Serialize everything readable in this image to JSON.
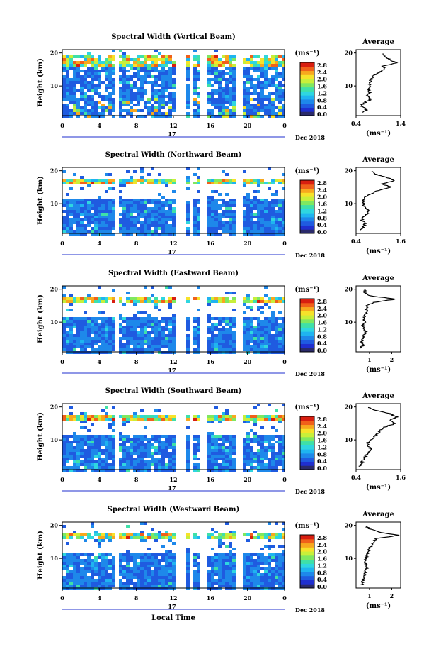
{
  "palette": [
    "#2a2a6a",
    "#1f2fcf",
    "#1f5be0",
    "#1e88ea",
    "#1fb4f0",
    "#2fd6e0",
    "#3fe0a8",
    "#7fe860",
    "#c8ef3a",
    "#f6e22a",
    "#f7a81e",
    "#f0601a",
    "#d81e10"
  ],
  "chart_data": [
    {
      "type": "heatmap",
      "title": "Spectral Width (Vertical Beam)",
      "ylabel": "Height (km)",
      "xlabel": "",
      "x_ticks": [
        "0",
        "4",
        "8",
        "12",
        "16",
        "20",
        "0"
      ],
      "date_label": "17",
      "month_label": "Dec 2018",
      "y_ticks": [
        "20",
        "10"
      ],
      "colorbar": {
        "unit": "(ms⁻¹)",
        "ticks": [
          "2.8",
          "2.4",
          "2.0",
          "1.6",
          "1.2",
          "0.8",
          "0.4",
          "0.0"
        ],
        "range": [
          0,
          3.0
        ]
      },
      "avg": {
        "title": "Average",
        "x_ticks": [
          "0.4",
          "1.4"
        ],
        "xlim": [
          0.4,
          1.4
        ],
        "y_ticks": [
          "20",
          "10"
        ],
        "xlabel": "(ms⁻¹)",
        "profile": [
          [
            2,
            0.55
          ],
          [
            3,
            0.65
          ],
          [
            4,
            0.5
          ],
          [
            5,
            0.6
          ],
          [
            6,
            0.75
          ],
          [
            7,
            0.65
          ],
          [
            8,
            0.7
          ],
          [
            9,
            0.68
          ],
          [
            10,
            0.72
          ],
          [
            11,
            0.7
          ],
          [
            12,
            0.74
          ],
          [
            13,
            0.78
          ],
          [
            14,
            0.9
          ],
          [
            15,
            1.05
          ],
          [
            16,
            1.0
          ],
          [
            17,
            1.3
          ],
          [
            18,
            1.15
          ],
          [
            19,
            1.05
          ],
          [
            20,
            1.0
          ]
        ]
      }
    },
    {
      "type": "heatmap",
      "title": "Spectral Width (Northward Beam)",
      "ylabel": "Height (km)",
      "xlabel": "",
      "x_ticks": [
        "0",
        "4",
        "8",
        "12",
        "16",
        "20",
        "0"
      ],
      "date_label": "17",
      "month_label": "Dec 2018",
      "y_ticks": [
        "20",
        "10"
      ],
      "colorbar": {
        "unit": "(ms⁻¹)",
        "ticks": [
          "2.8",
          "2.4",
          "2.0",
          "1.6",
          "1.2",
          "0.8",
          "0.4",
          "0.0"
        ],
        "range": [
          0,
          3.0
        ]
      },
      "avg": {
        "title": "Average",
        "x_ticks": [
          "0.4",
          "1.6"
        ],
        "xlim": [
          0.4,
          1.6
        ],
        "y_ticks": [
          "20",
          "10"
        ],
        "xlabel": "(ms⁻¹)",
        "profile": [
          [
            2,
            0.55
          ],
          [
            3,
            0.6
          ],
          [
            4,
            0.65
          ],
          [
            5,
            0.55
          ],
          [
            6,
            0.6
          ],
          [
            7,
            0.7
          ],
          [
            8,
            0.75
          ],
          [
            9,
            0.62
          ],
          [
            10,
            0.6
          ],
          [
            11,
            0.6
          ],
          [
            12,
            0.65
          ],
          [
            13,
            0.8
          ],
          [
            14,
            1.0
          ],
          [
            15,
            1.35
          ],
          [
            16,
            1.1
          ],
          [
            17,
            1.45
          ],
          [
            18,
            1.2
          ],
          [
            19,
            0.9
          ],
          [
            20,
            0.8
          ]
        ]
      }
    },
    {
      "type": "heatmap",
      "title": "Spectral Width (Eastward Beam)",
      "ylabel": "Height (km)",
      "xlabel": "",
      "x_ticks": [
        "0",
        "4",
        "8",
        "12",
        "16",
        "20",
        "0"
      ],
      "date_label": "17",
      "month_label": "Dec 2018",
      "y_ticks": [
        "20",
        "10"
      ],
      "colorbar": {
        "unit": "(ms⁻¹)",
        "ticks": [
          "2.8",
          "2.4",
          "2.0",
          "1.6",
          "1.2",
          "0.8",
          "0.4",
          "0.0"
        ],
        "range": [
          0,
          3.0
        ]
      },
      "avg": {
        "title": "Average",
        "x_ticks": [
          "1",
          "2"
        ],
        "xlim": [
          0.4,
          2.4
        ],
        "y_ticks": [
          "20",
          "10"
        ],
        "xlabel": "(ms⁻¹)",
        "profile": [
          [
            2,
            0.6
          ],
          [
            3,
            0.7
          ],
          [
            4,
            0.65
          ],
          [
            5,
            0.7
          ],
          [
            6,
            0.75
          ],
          [
            7,
            0.85
          ],
          [
            8,
            0.75
          ],
          [
            9,
            0.7
          ],
          [
            10,
            0.8
          ],
          [
            11,
            0.75
          ],
          [
            12,
            0.8
          ],
          [
            13,
            0.9
          ],
          [
            14,
            0.85
          ],
          [
            15,
            0.9
          ],
          [
            16,
            1.2
          ],
          [
            17,
            2.2
          ],
          [
            18,
            1.0
          ],
          [
            19,
            0.8
          ],
          [
            20,
            0.8
          ]
        ]
      }
    },
    {
      "type": "heatmap",
      "title": "Spectral Width (Southward Beam)",
      "ylabel": "Height (km)",
      "xlabel": "",
      "x_ticks": [
        "0",
        "4",
        "8",
        "12",
        "16",
        "20",
        "0"
      ],
      "date_label": "17",
      "month_label": "Dec 2018",
      "y_ticks": [
        "20",
        "10"
      ],
      "colorbar": {
        "unit": "(ms⁻¹)",
        "ticks": [
          "2.8",
          "2.4",
          "2.0",
          "1.6",
          "1.2",
          "0.8",
          "0.4",
          "0.0"
        ],
        "range": [
          0,
          3.0
        ]
      },
      "avg": {
        "title": "Average",
        "x_ticks": [
          "0.4",
          "1.6"
        ],
        "xlim": [
          0.4,
          1.6
        ],
        "y_ticks": [
          "20",
          "10"
        ],
        "xlabel": "(ms⁻¹)",
        "profile": [
          [
            2,
            0.5
          ],
          [
            3,
            0.55
          ],
          [
            4,
            0.6
          ],
          [
            5,
            0.65
          ],
          [
            6,
            0.7
          ],
          [
            7,
            0.8
          ],
          [
            8,
            0.75
          ],
          [
            9,
            0.7
          ],
          [
            10,
            0.8
          ],
          [
            11,
            0.9
          ],
          [
            12,
            1.0
          ],
          [
            13,
            1.05
          ],
          [
            14,
            1.2
          ],
          [
            15,
            1.45
          ],
          [
            16,
            1.3
          ],
          [
            17,
            1.5
          ],
          [
            18,
            1.3
          ],
          [
            19,
            0.9
          ],
          [
            20,
            0.7
          ]
        ]
      }
    },
    {
      "type": "heatmap",
      "title": "Spectral Width (Westward Beam)",
      "ylabel": "Height (km)",
      "xlabel": "Local Time",
      "x_ticks": [
        "0",
        "4",
        "8",
        "12",
        "16",
        "20",
        "0"
      ],
      "date_label": "17",
      "month_label": "Dec 2018",
      "y_ticks": [
        "20",
        "10"
      ],
      "colorbar": {
        "unit": "(ms⁻¹)",
        "ticks": [
          "2.8",
          "2.4",
          "2.0",
          "1.6",
          "1.2",
          "0.8",
          "0.4",
          "0.0"
        ],
        "range": [
          0,
          3.0
        ]
      },
      "avg": {
        "title": "Average",
        "x_ticks": [
          "1",
          "2"
        ],
        "xlim": [
          0.4,
          2.4
        ],
        "y_ticks": [
          "20",
          "10"
        ],
        "xlabel": "(ms⁻¹)",
        "profile": [
          [
            2,
            0.65
          ],
          [
            3,
            0.7
          ],
          [
            4,
            0.75
          ],
          [
            5,
            0.8
          ],
          [
            6,
            0.8
          ],
          [
            7,
            0.9
          ],
          [
            8,
            0.85
          ],
          [
            9,
            0.8
          ],
          [
            10,
            0.85
          ],
          [
            11,
            0.9
          ],
          [
            12,
            0.95
          ],
          [
            13,
            1.0
          ],
          [
            14,
            1.1
          ],
          [
            15,
            1.2
          ],
          [
            16,
            1.3
          ],
          [
            17,
            2.3
          ],
          [
            18,
            1.4
          ],
          [
            19,
            1.0
          ],
          [
            20,
            0.8
          ]
        ]
      }
    }
  ]
}
